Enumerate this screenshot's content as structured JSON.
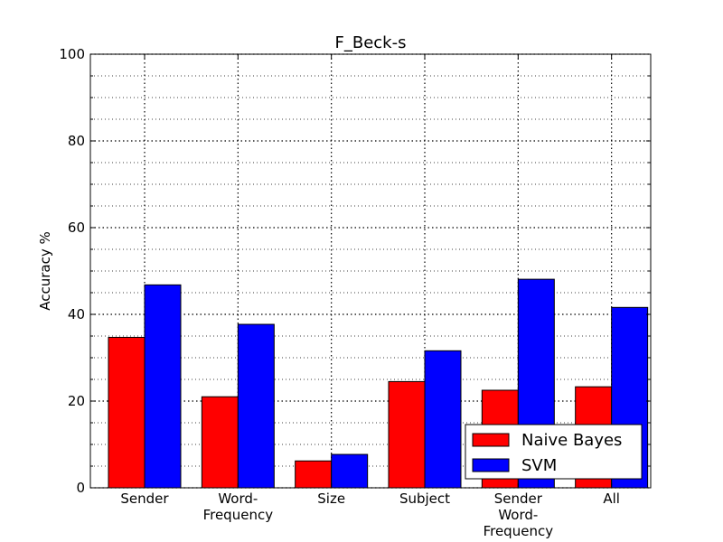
{
  "chart_data": {
    "type": "bar",
    "title": "F_Beck-s",
    "xlabel": "",
    "ylabel": "Accuracy %",
    "ylim": [
      0,
      100
    ],
    "yticks": [
      0,
      20,
      40,
      60,
      80,
      100
    ],
    "categories": [
      [
        "Sender"
      ],
      [
        "Word-",
        "Frequency"
      ],
      [
        "Size"
      ],
      [
        "Subject"
      ],
      [
        "Sender",
        "Word-",
        "Frequency"
      ],
      [
        "All"
      ]
    ],
    "series": [
      {
        "name": "Naive Bayes",
        "color": "#ff0000",
        "values": [
          34.7,
          21.0,
          6.2,
          24.5,
          22.5,
          23.3
        ]
      },
      {
        "name": "SVM",
        "color": "#0000ff",
        "values": [
          46.8,
          37.7,
          7.7,
          31.6,
          48.1,
          41.6
        ]
      }
    ],
    "grid": true,
    "legend_position": "lower-right"
  }
}
